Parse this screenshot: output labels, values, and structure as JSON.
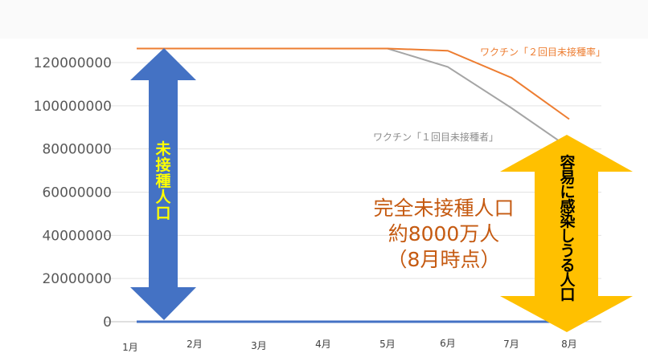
{
  "chart_data": {
    "type": "line",
    "categories": [
      "1月",
      "2月",
      "3月",
      "4月",
      "5月",
      "6月",
      "7月",
      "8月"
    ],
    "y_ticks": [
      "0",
      "20000000",
      "40000000",
      "60000000",
      "80000000",
      "100000000",
      "120000000"
    ],
    "ylim": [
      0,
      120000000
    ],
    "grid": true,
    "series": [
      {
        "name": "ワクチン「２回目未接種率」",
        "color": "#ed7d31",
        "values": [
          126500000,
          126500000,
          126500000,
          126500000,
          126500000,
          125500000,
          113000000,
          93800000
        ]
      },
      {
        "name": "ワクチン「１回目未接種者」",
        "color": "#a5a5a5",
        "values": [
          126500000,
          126500000,
          126500000,
          126500000,
          126500000,
          118000000,
          99000000,
          80500000
        ]
      },
      {
        "name": "",
        "color": "#4472c4",
        "values": [
          0,
          0,
          0,
          0,
          0,
          0,
          0,
          0
        ]
      }
    ],
    "annotations": {
      "left_arrow_label": "未接種人口",
      "right_arrow_label": "容易に感染しうる人口",
      "center_text": [
        "完全未接種人口",
        "約8000万人",
        "（8月時点）"
      ]
    },
    "colors": {
      "left_arrow": "#4472c4",
      "right_arrow": "#ffc000",
      "left_text": "#ffff00",
      "right_text": "#000000"
    }
  }
}
